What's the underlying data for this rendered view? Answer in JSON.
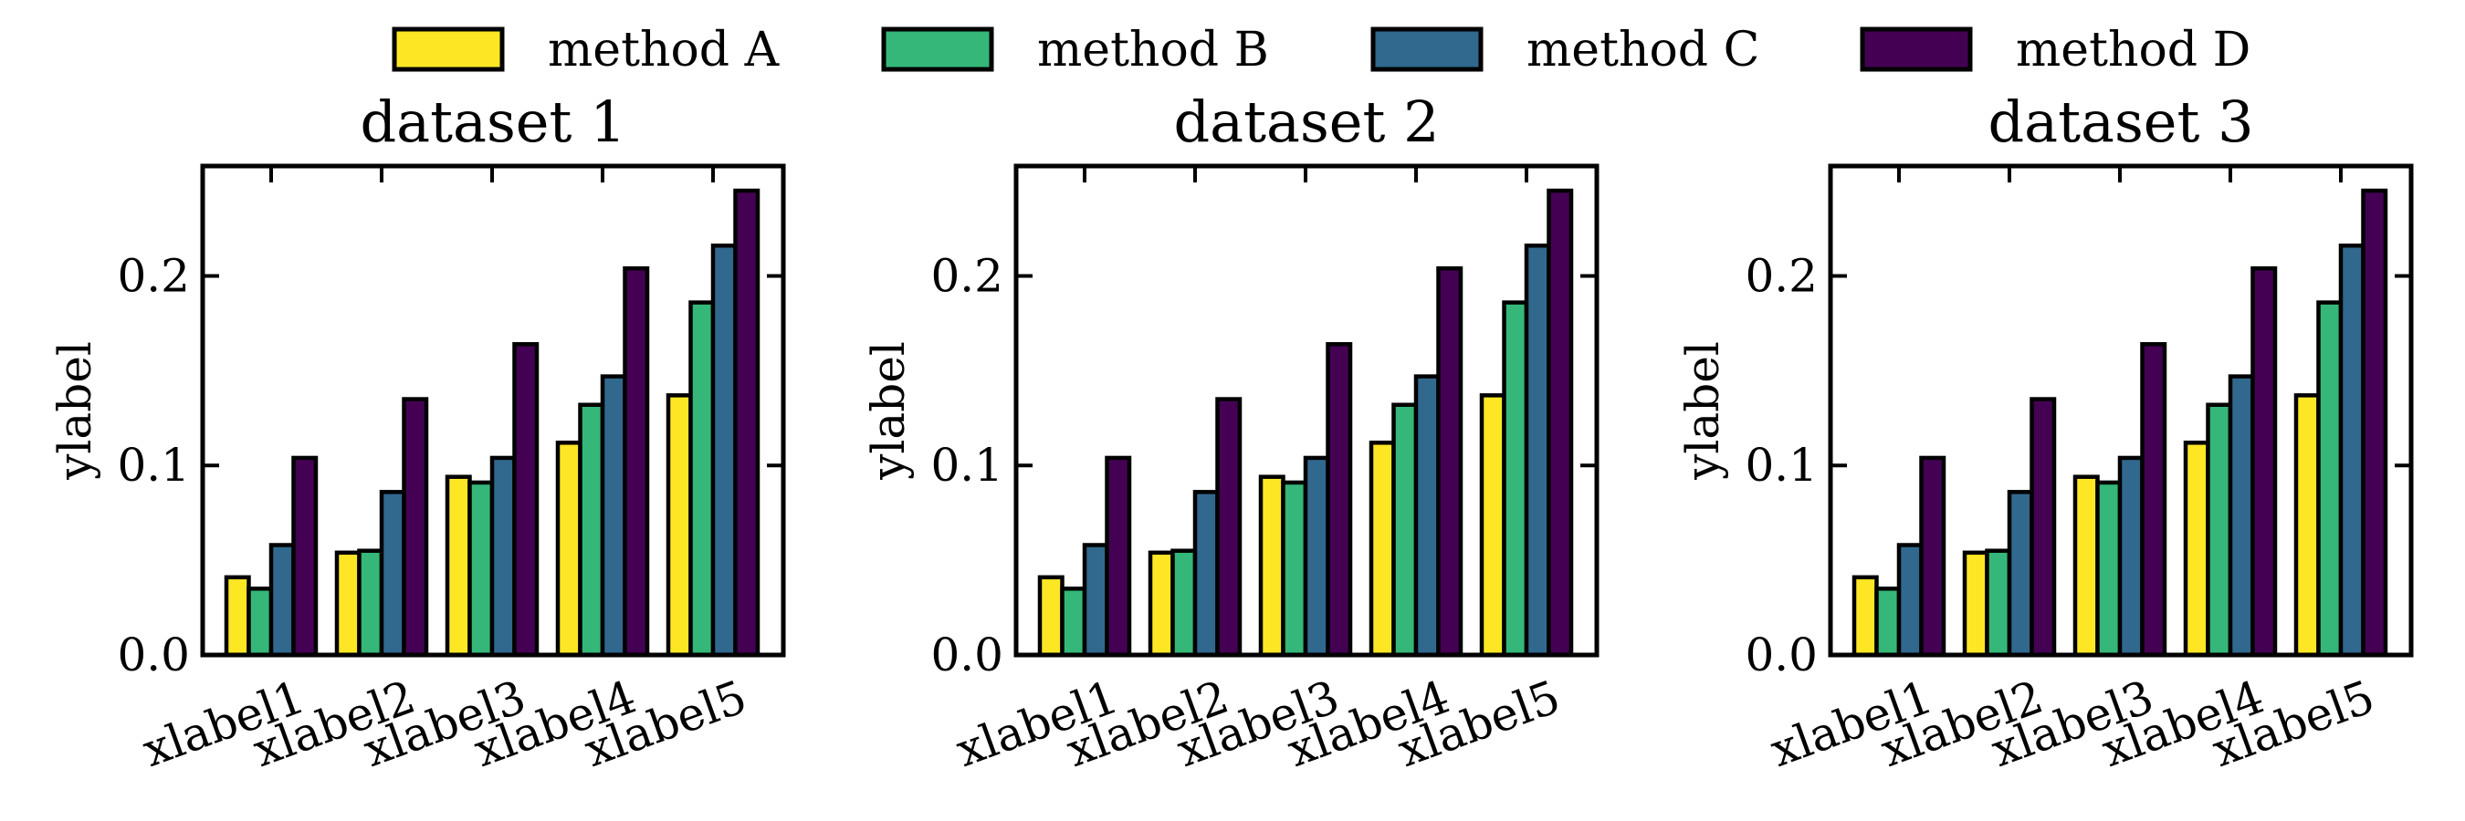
{
  "legend": [
    "method A",
    "method B",
    "method C",
    "method D"
  ],
  "colors": {
    "method A": "#fde725",
    "method B": "#35b779",
    "method C": "#31688e",
    "method D": "#440154"
  },
  "chart_data": [
    {
      "type": "bar",
      "title": "dataset 1",
      "xlabel": "",
      "ylabel": "ylabel",
      "categories": [
        "xlabel1",
        "xlabel2",
        "xlabel3",
        "xlabel4",
        "xlabel5"
      ],
      "series": [
        {
          "name": "method A",
          "values": [
            0.041,
            0.054,
            0.094,
            0.112,
            0.137
          ]
        },
        {
          "name": "method B",
          "values": [
            0.035,
            0.055,
            0.091,
            0.132,
            0.186
          ]
        },
        {
          "name": "method C",
          "values": [
            0.058,
            0.086,
            0.104,
            0.147,
            0.216
          ]
        },
        {
          "name": "method D",
          "values": [
            0.104,
            0.135,
            0.164,
            0.204,
            0.245
          ]
        }
      ],
      "ylim": [
        0,
        0.258
      ],
      "yticks": [
        "0.0",
        "0.1",
        "0.2"
      ],
      "legend_position": "top-center",
      "grid": false
    },
    {
      "type": "bar",
      "title": "dataset 2",
      "xlabel": "",
      "ylabel": "ylabel",
      "categories": [
        "xlabel1",
        "xlabel2",
        "xlabel3",
        "xlabel4",
        "xlabel5"
      ],
      "series": [
        {
          "name": "method A",
          "values": [
            0.041,
            0.054,
            0.094,
            0.112,
            0.137
          ]
        },
        {
          "name": "method B",
          "values": [
            0.035,
            0.055,
            0.091,
            0.132,
            0.186
          ]
        },
        {
          "name": "method C",
          "values": [
            0.058,
            0.086,
            0.104,
            0.147,
            0.216
          ]
        },
        {
          "name": "method D",
          "values": [
            0.104,
            0.135,
            0.164,
            0.204,
            0.245
          ]
        }
      ],
      "ylim": [
        0,
        0.258
      ],
      "yticks": [
        "0.0",
        "0.1",
        "0.2"
      ],
      "legend_position": "top-center",
      "grid": false
    },
    {
      "type": "bar",
      "title": "dataset 3",
      "xlabel": "",
      "ylabel": "ylabel",
      "categories": [
        "xlabel1",
        "xlabel2",
        "xlabel3",
        "xlabel4",
        "xlabel5"
      ],
      "series": [
        {
          "name": "method A",
          "values": [
            0.041,
            0.054,
            0.094,
            0.112,
            0.137
          ]
        },
        {
          "name": "method B",
          "values": [
            0.035,
            0.055,
            0.091,
            0.132,
            0.186
          ]
        },
        {
          "name": "method C",
          "values": [
            0.058,
            0.086,
            0.104,
            0.147,
            0.216
          ]
        },
        {
          "name": "method D",
          "values": [
            0.104,
            0.135,
            0.164,
            0.204,
            0.245
          ]
        }
      ],
      "ylim": [
        0,
        0.258
      ],
      "yticks": [
        "0.0",
        "0.1",
        "0.2"
      ],
      "legend_position": "top-center",
      "grid": false
    }
  ]
}
